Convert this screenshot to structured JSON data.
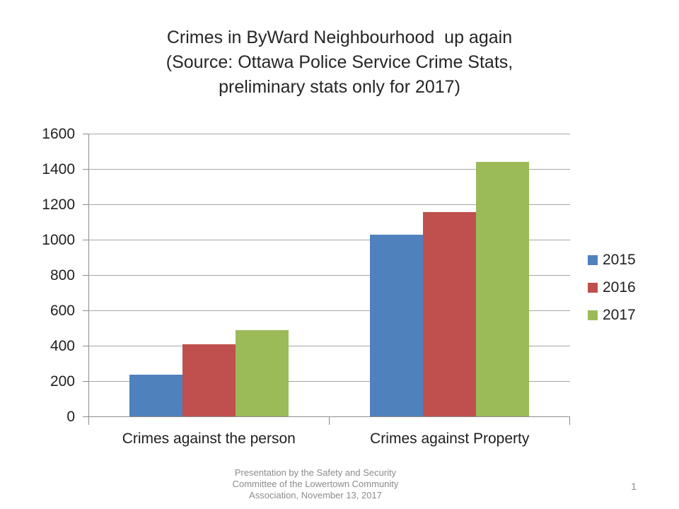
{
  "slide": {
    "title_lines": [
      "Crimes in ByWard Neighbourhood  up again",
      "(Source: Ottawa Police Service Crime Stats,",
      "preliminary stats only for 2017)"
    ],
    "footer_lines": [
      "Presentation by the Safety and Security",
      "Committee of the Lowertown Community",
      "Association, November 13, 2017"
    ],
    "page_number": "1"
  },
  "chart_data": {
    "type": "bar",
    "title": "Crimes in ByWard Neighbourhood up again (Source: Ottawa Police Service Crime Stats, preliminary stats only for 2017)",
    "categories": [
      "Crimes against the person",
      "Crimes against Property"
    ],
    "series": [
      {
        "name": "2015",
        "color": "#4F81BD",
        "values": [
          235,
          1030
        ]
      },
      {
        "name": "2016",
        "color": "#C0504D",
        "values": [
          410,
          1155
        ]
      },
      {
        "name": "2017",
        "color": "#9BBB59",
        "values": [
          490,
          1440
        ]
      }
    ],
    "xlabel": "",
    "ylabel": "",
    "ylim": [
      0,
      1600
    ],
    "yticks": [
      0,
      200,
      400,
      600,
      800,
      1000,
      1200,
      1400,
      1600
    ],
    "grid": true,
    "legend_position": "right",
    "colors": {
      "axis": "#8C8C8C",
      "gridline": "#A6A6A6",
      "title_text": "#262626",
      "label_text": "#1f1f1f",
      "footer_text": "#8C8C8C"
    }
  }
}
